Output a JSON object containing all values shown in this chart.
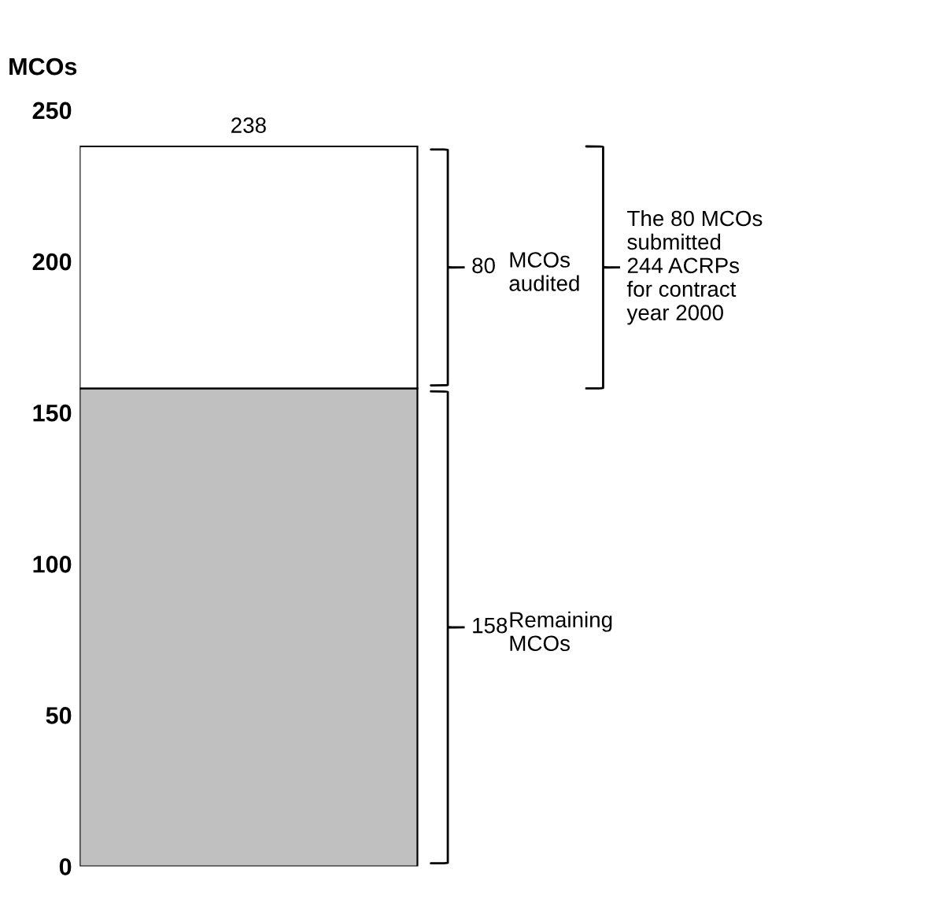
{
  "chart_data": {
    "type": "bar",
    "stacked": true,
    "categories": [
      null
    ],
    "series": [
      {
        "name": "Remaining MCOs",
        "color": "#c0c0c0",
        "values": [
          158
        ]
      },
      {
        "name": "MCOs audited",
        "color": "#ffffff",
        "values": [
          80
        ]
      }
    ],
    "totals": [
      "238"
    ],
    "ylabel": "MCOs",
    "ylim": [
      0,
      250
    ],
    "yticks": [
      0,
      50,
      100,
      150,
      200,
      250
    ],
    "grid": false,
    "legend": false,
    "tick_labels": "y",
    "annotations": [
      "158",
      "80",
      "The 80 MCOs submitted 244 ACRPs for contract year 2000"
    ]
  }
}
